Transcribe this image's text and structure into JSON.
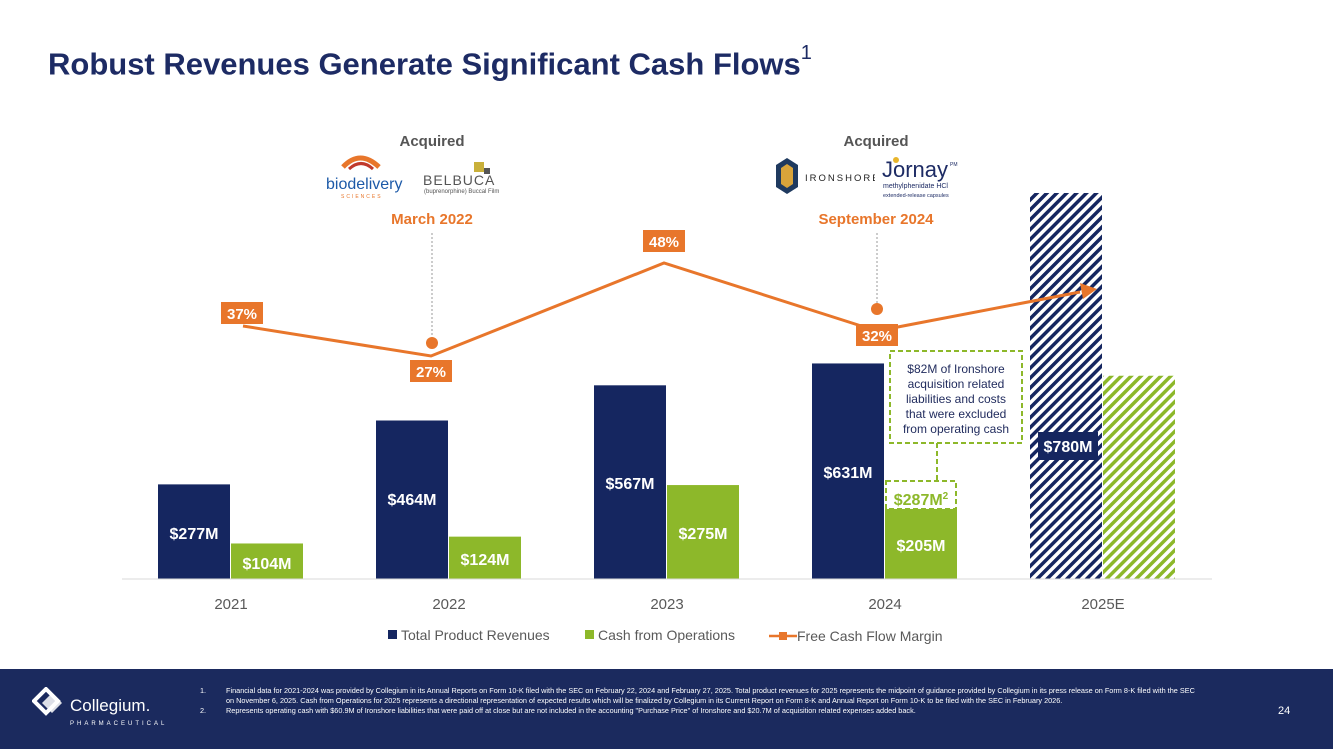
{
  "title": {
    "main": "Robust Revenues Generate Significant Cash Flows",
    "superscript": "1"
  },
  "acquisitions": [
    {
      "label": "Acquired",
      "date": "March 2022",
      "logos": [
        "biodelivery",
        "SCIENCES",
        "BELBUCA",
        "(buprenorphine) Buccal Film"
      ]
    },
    {
      "label": "Acquired",
      "date": "September 2024",
      "logos": [
        "IRONSHORE",
        "Jornay",
        "PM",
        "methylphenidate HCl",
        "extended-release capsules"
      ]
    }
  ],
  "chart_data": {
    "type": "bar",
    "categories": [
      "2021",
      "2022",
      "2023",
      "2024",
      "2025E"
    ],
    "series": [
      {
        "name": "Total Product Revenues",
        "values": [
          277,
          464,
          567,
          631,
          780
        ],
        "labels": [
          "$277M",
          "$464M",
          "$567M",
          "$631M",
          "$780M"
        ],
        "color": "#152660"
      },
      {
        "name": "Cash from Operations",
        "values": [
          104,
          124,
          275,
          205,
          null
        ],
        "labels": [
          "$104M",
          "$124M",
          "$275M",
          "$205M",
          ""
        ],
        "color": "#8db82a"
      },
      {
        "name": "Free Cash Flow Margin",
        "type": "line",
        "values": [
          37,
          27,
          48,
          32,
          null
        ],
        "labels": [
          "37%",
          "27%",
          "48%",
          "32%",
          ""
        ],
        "color": "#e8762b"
      }
    ],
    "estimate_2025": {
      "revenue_range_low": 780,
      "revenue_range_high": 1130,
      "cash_from_ops_range_low": 0,
      "cash_from_ops_range_high": 595
    },
    "adjusted_cash_2024": {
      "value": 287,
      "label": "$287M",
      "superscript": "2"
    },
    "callout": "$82M of Ironshore acquisition related liabilities and costs that were excluded from operating cash",
    "ylim": [
      0,
      1150
    ],
    "legend": [
      "Total Product Revenues",
      "Cash from Operations",
      "Free Cash Flow Margin"
    ],
    "legend_position": "bottom"
  },
  "footer": {
    "brand": "Collegium.",
    "brand_sub": "PHARMACEUTICAL",
    "notes": [
      {
        "num": "1.",
        "text": "Financial data for 2021-2024 was provided by Collegium in its Annual Reports on Form 10-K filed with the SEC on February 22, 2024 and February 27, 2025. Total product revenues for 2025 represents the midpoint of guidance provided by Collegium in its press release on Form 8-K filed with the SEC on November 6, 2025. Cash from Operations for 2025 represents a directional representation of expected results which will be finalized by Collegium in its Current Report on Form 8-K and Annual Report on Form 10-K to be filed with the SEC in February 2026."
      },
      {
        "num": "2.",
        "text": "Represents operating cash with $60.9M of Ironshore liabilities that were paid off at close but are not included in the accounting \"Purchase Price\" of Ironshore and $20.7M of acquisition related expenses added back."
      }
    ],
    "page_number": "24"
  },
  "colors": {
    "navy": "#152660",
    "green": "#8db82a",
    "orange": "#e8762b",
    "footer_bg": "#1b2a5e"
  }
}
